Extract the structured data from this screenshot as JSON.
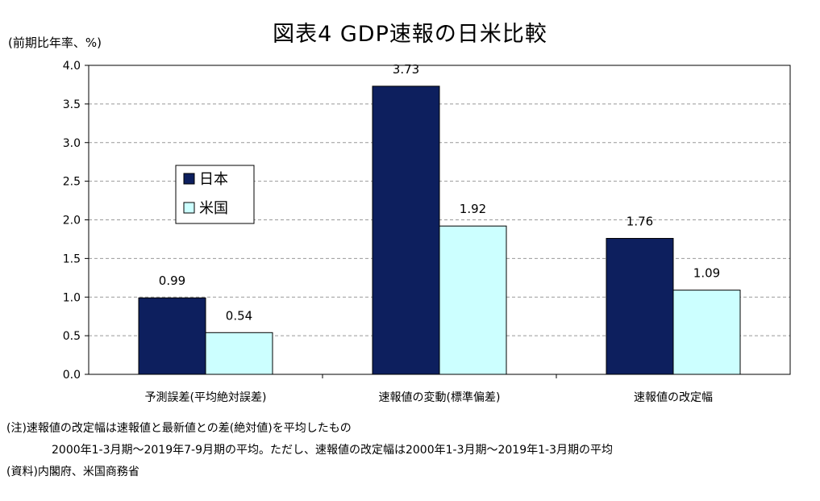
{
  "chart_data": {
    "type": "bar",
    "title": "図表4 GDP速報の日米比較",
    "ylabel": "(前期比年率、%)",
    "ylim": [
      0,
      4.0
    ],
    "yticks": [
      "0.0",
      "0.5",
      "1.0",
      "1.5",
      "2.0",
      "2.5",
      "3.0",
      "3.5",
      "4.0"
    ],
    "grid": true,
    "legend_position": "upper-left",
    "categories": [
      "予測誤差(平均絶対誤差)",
      "速報値の変動(標準偏差)",
      "速報値の改定幅"
    ],
    "series": [
      {
        "name": "日本",
        "color": "#0d1f5e",
        "values": [
          0.99,
          3.73,
          1.76
        ],
        "labels": [
          "0.99",
          "3.73",
          "1.76"
        ]
      },
      {
        "name": "米国",
        "color": "#ccffff",
        "values": [
          0.54,
          1.92,
          1.09
        ],
        "labels": [
          "0.54",
          "1.92",
          "1.09"
        ]
      }
    ]
  },
  "notes": [
    "(注)速報値の改定幅は速報値と最新値との差(絶対値)を平均したもの",
    "2000年1-3月期～2019年7-9月期の平均。ただし、速報値の改定幅は2000年1-3月期～2019年1-3月期の平均",
    "(資料)内閣府、米国商務省"
  ]
}
